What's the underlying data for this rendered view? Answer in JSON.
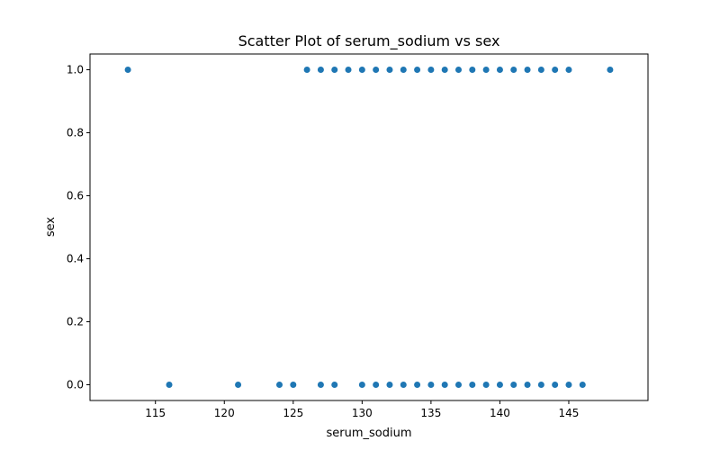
{
  "chart_data": {
    "type": "scatter",
    "title": "Scatter Plot of serum_sodium vs sex",
    "xlabel": "serum_sodium",
    "ylabel": "sex",
    "xlim": [
      110.25,
      150.75
    ],
    "ylim": [
      -0.05,
      1.05
    ],
    "xticks": [
      115,
      120,
      125,
      130,
      135,
      140,
      145
    ],
    "yticks": [
      0.0,
      0.2,
      0.4,
      0.6,
      0.8,
      1.0
    ],
    "xtick_labels": [
      "115",
      "120",
      "125",
      "130",
      "135",
      "140",
      "145"
    ],
    "ytick_labels": [
      "0.0",
      "0.2",
      "0.4",
      "0.6",
      "0.8",
      "1.0"
    ],
    "grid": false,
    "marker_color": "#1f77b4",
    "points": [
      {
        "x": 113,
        "y": 1
      },
      {
        "x": 126,
        "y": 1
      },
      {
        "x": 127,
        "y": 1
      },
      {
        "x": 128,
        "y": 1
      },
      {
        "x": 129,
        "y": 1
      },
      {
        "x": 130,
        "y": 1
      },
      {
        "x": 131,
        "y": 1
      },
      {
        "x": 132,
        "y": 1
      },
      {
        "x": 133,
        "y": 1
      },
      {
        "x": 134,
        "y": 1
      },
      {
        "x": 135,
        "y": 1
      },
      {
        "x": 136,
        "y": 1
      },
      {
        "x": 137,
        "y": 1
      },
      {
        "x": 138,
        "y": 1
      },
      {
        "x": 139,
        "y": 1
      },
      {
        "x": 140,
        "y": 1
      },
      {
        "x": 141,
        "y": 1
      },
      {
        "x": 142,
        "y": 1
      },
      {
        "x": 143,
        "y": 1
      },
      {
        "x": 144,
        "y": 1
      },
      {
        "x": 145,
        "y": 1
      },
      {
        "x": 148,
        "y": 1
      },
      {
        "x": 116,
        "y": 0
      },
      {
        "x": 121,
        "y": 0
      },
      {
        "x": 124,
        "y": 0
      },
      {
        "x": 125,
        "y": 0
      },
      {
        "x": 127,
        "y": 0
      },
      {
        "x": 128,
        "y": 0
      },
      {
        "x": 130,
        "y": 0
      },
      {
        "x": 131,
        "y": 0
      },
      {
        "x": 132,
        "y": 0
      },
      {
        "x": 133,
        "y": 0
      },
      {
        "x": 134,
        "y": 0
      },
      {
        "x": 135,
        "y": 0
      },
      {
        "x": 136,
        "y": 0
      },
      {
        "x": 137,
        "y": 0
      },
      {
        "x": 138,
        "y": 0
      },
      {
        "x": 139,
        "y": 0
      },
      {
        "x": 140,
        "y": 0
      },
      {
        "x": 141,
        "y": 0
      },
      {
        "x": 142,
        "y": 0
      },
      {
        "x": 143,
        "y": 0
      },
      {
        "x": 144,
        "y": 0
      },
      {
        "x": 145,
        "y": 0
      },
      {
        "x": 146,
        "y": 0
      }
    ]
  }
}
